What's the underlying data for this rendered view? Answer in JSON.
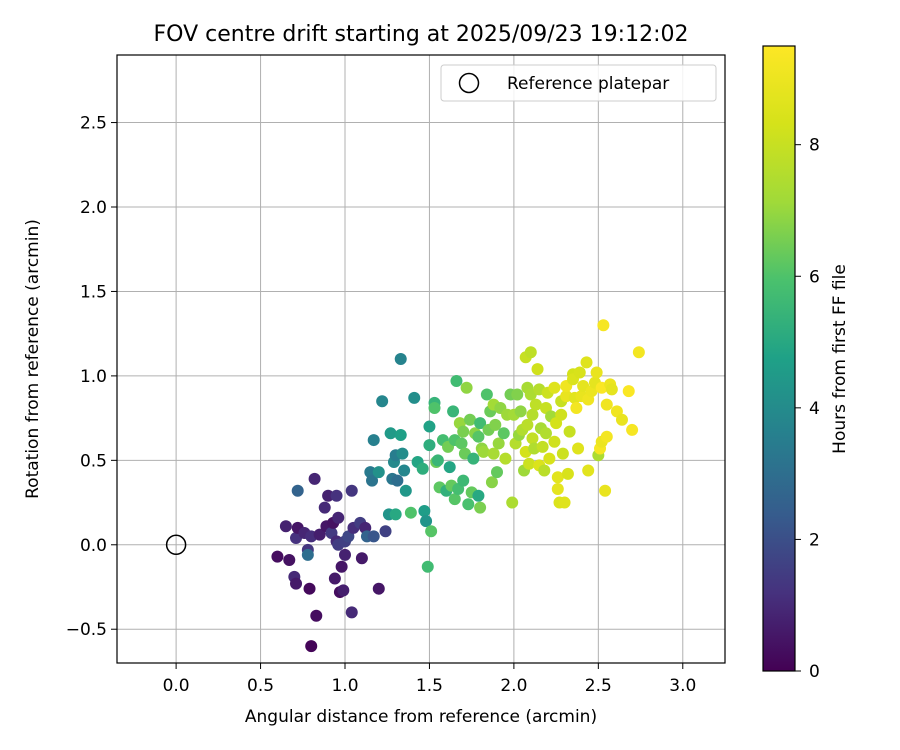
{
  "chart_data": {
    "type": "scatter",
    "title": "FOV centre drift starting at 2025/09/23 19:12:02",
    "xlabel": "Angular distance from reference (arcmin)",
    "ylabel": "Rotation from reference (arcmin)",
    "xlim": [
      -0.35,
      3.25
    ],
    "ylim": [
      -0.7,
      2.9
    ],
    "xticks": [
      0.0,
      0.5,
      1.0,
      1.5,
      2.0,
      2.5,
      3.0
    ],
    "xtick_labels": [
      "0.0",
      "0.5",
      "1.0",
      "1.5",
      "2.0",
      "2.5",
      "3.0"
    ],
    "yticks": [
      -0.5,
      0.0,
      0.5,
      1.0,
      1.5,
      2.0,
      2.5
    ],
    "ytick_labels": [
      "−0.5",
      "0.0",
      "0.5",
      "1.0",
      "1.5",
      "2.0",
      "2.5"
    ],
    "grid": true,
    "legend": {
      "position": "top-right",
      "entries": [
        {
          "label": "Reference platepar",
          "marker": "open-circle"
        }
      ]
    },
    "reference_point": {
      "x": 0.0,
      "y": 0.0
    },
    "colorbar": {
      "label": "Hours from first FF file",
      "colormap": "viridis",
      "range": [
        0,
        9.5
      ],
      "ticks": [
        0,
        2,
        4,
        6,
        8
      ],
      "tick_labels": [
        "0",
        "2",
        "4",
        "6",
        "8"
      ]
    },
    "series": [
      {
        "name": "FOV centre",
        "colored_by": "hours",
        "points": [
          [
            0.6,
            -0.07,
            0.3
          ],
          [
            0.67,
            -0.09,
            0.4
          ],
          [
            0.65,
            0.11,
            0.8
          ],
          [
            0.71,
            0.04,
            1.2
          ],
          [
            0.72,
            0.1,
            0.5
          ],
          [
            0.7,
            -0.19,
            1.0
          ],
          [
            0.71,
            -0.23,
            0.6
          ],
          [
            0.72,
            0.32,
            2.6
          ],
          [
            0.76,
            0.07,
            0.9
          ],
          [
            0.78,
            -0.03,
            1.3
          ],
          [
            0.78,
            -0.06,
            3.0
          ],
          [
            0.79,
            -0.26,
            0.2
          ],
          [
            0.8,
            0.05,
            1.1
          ],
          [
            0.8,
            -0.6,
            0.1
          ],
          [
            0.82,
            0.39,
            0.9
          ],
          [
            0.83,
            -0.42,
            0.3
          ],
          [
            0.85,
            0.06,
            0.7
          ],
          [
            0.88,
            0.22,
            1.0
          ],
          [
            0.89,
            0.11,
            0.5
          ],
          [
            0.9,
            0.29,
            0.8
          ],
          [
            0.92,
            0.07,
            1.4
          ],
          [
            0.93,
            0.13,
            0.4
          ],
          [
            0.94,
            -0.2,
            0.6
          ],
          [
            0.95,
            0.29,
            1.2
          ],
          [
            0.95,
            0.02,
            1.0
          ],
          [
            0.96,
            0.0,
            1.5
          ],
          [
            0.96,
            0.16,
            0.9
          ],
          [
            0.97,
            -0.28,
            0.3
          ],
          [
            0.98,
            -0.13,
            0.5
          ],
          [
            0.99,
            -0.27,
            0.7
          ],
          [
            1.0,
            0.02,
            1.6
          ],
          [
            1.0,
            -0.06,
            0.8
          ],
          [
            1.02,
            0.05,
            1.8
          ],
          [
            1.04,
            0.32,
            1.3
          ],
          [
            1.04,
            -0.4,
            1.0
          ],
          [
            1.05,
            0.1,
            1.1
          ],
          [
            1.09,
            0.13,
            1.5
          ],
          [
            1.1,
            -0.08,
            0.6
          ],
          [
            1.12,
            0.1,
            0.9
          ],
          [
            1.13,
            0.05,
            2.6
          ],
          [
            1.15,
            0.43,
            3.4
          ],
          [
            1.16,
            0.38,
            3.2
          ],
          [
            1.17,
            0.62,
            3.6
          ],
          [
            1.17,
            0.05,
            2.2
          ],
          [
            1.2,
            -0.26,
            0.5
          ],
          [
            1.2,
            0.43,
            4.2
          ],
          [
            1.22,
            0.85,
            3.8
          ],
          [
            1.24,
            0.08,
            1.6
          ],
          [
            1.26,
            0.18,
            4.3
          ],
          [
            1.27,
            0.66,
            4.5
          ],
          [
            1.28,
            0.39,
            3.3
          ],
          [
            1.29,
            0.49,
            3.9
          ],
          [
            1.3,
            0.53,
            3.5
          ],
          [
            1.3,
            0.18,
            5.0
          ],
          [
            1.31,
            0.38,
            3.0
          ],
          [
            1.33,
            0.65,
            4.7
          ],
          [
            1.33,
            1.1,
            3.7
          ],
          [
            1.34,
            0.54,
            4.0
          ],
          [
            1.35,
            0.44,
            3.8
          ],
          [
            1.36,
            0.32,
            4.4
          ],
          [
            1.39,
            0.19,
            6.0
          ],
          [
            1.41,
            0.87,
            4.1
          ],
          [
            1.43,
            0.49,
            4.9
          ],
          [
            1.46,
            0.45,
            5.2
          ],
          [
            1.47,
            0.2,
            4.6
          ],
          [
            1.48,
            0.14,
            4.3
          ],
          [
            1.49,
            -0.13,
            5.7
          ],
          [
            1.5,
            0.59,
            5.2
          ],
          [
            1.5,
            0.7,
            4.8
          ],
          [
            1.51,
            0.08,
            6.1
          ],
          [
            1.53,
            0.84,
            5.4
          ],
          [
            1.53,
            0.81,
            6.0
          ],
          [
            1.54,
            0.49,
            6.4
          ],
          [
            1.55,
            0.5,
            5.5
          ],
          [
            1.56,
            0.34,
            6.2
          ],
          [
            1.58,
            0.62,
            5.8
          ],
          [
            1.6,
            0.32,
            5.3
          ],
          [
            1.61,
            0.58,
            6.5
          ],
          [
            1.62,
            0.46,
            4.9
          ],
          [
            1.63,
            0.35,
            6.3
          ],
          [
            1.64,
            0.79,
            5.5
          ],
          [
            1.65,
            0.27,
            6.1
          ],
          [
            1.65,
            0.62,
            6.0
          ],
          [
            1.66,
            0.97,
            5.7
          ],
          [
            1.67,
            0.33,
            5.8
          ],
          [
            1.68,
            0.72,
            7.0
          ],
          [
            1.69,
            0.6,
            6.2
          ],
          [
            1.7,
            0.38,
            5.6
          ],
          [
            1.7,
            0.67,
            6.6
          ],
          [
            1.71,
            0.54,
            6.4
          ],
          [
            1.72,
            0.93,
            6.9
          ],
          [
            1.73,
            0.24,
            5.9
          ],
          [
            1.74,
            0.74,
            6.5
          ],
          [
            1.75,
            0.31,
            6.3
          ],
          [
            1.76,
            0.51,
            5.4
          ],
          [
            1.77,
            0.66,
            6.8
          ],
          [
            1.79,
            0.29,
            5.0
          ],
          [
            1.79,
            0.64,
            6.1
          ],
          [
            1.8,
            0.72,
            5.7
          ],
          [
            1.8,
            0.22,
            6.6
          ],
          [
            1.81,
            0.57,
            6.9
          ],
          [
            1.82,
            0.55,
            7.1
          ],
          [
            1.84,
            0.89,
            6.0
          ],
          [
            1.85,
            0.68,
            6.5
          ],
          [
            1.86,
            0.79,
            6.4
          ],
          [
            1.87,
            0.37,
            6.8
          ],
          [
            1.88,
            0.54,
            7.3
          ],
          [
            1.88,
            0.83,
            7.2
          ],
          [
            1.89,
            0.71,
            6.7
          ],
          [
            1.9,
            0.43,
            6.3
          ],
          [
            1.91,
            0.6,
            7.0
          ],
          [
            1.92,
            0.81,
            6.9
          ],
          [
            1.94,
            0.66,
            6.2
          ],
          [
            1.95,
            0.51,
            7.6
          ],
          [
            1.96,
            0.77,
            7.1
          ],
          [
            1.98,
            0.89,
            6.5
          ],
          [
            1.99,
            0.25,
            7.4
          ],
          [
            2.0,
            0.77,
            7.2
          ],
          [
            2.01,
            0.6,
            7.6
          ],
          [
            2.02,
            0.89,
            6.7
          ],
          [
            2.03,
            0.65,
            7.0
          ],
          [
            2.04,
            0.79,
            6.9
          ],
          [
            2.05,
            0.68,
            7.5
          ],
          [
            2.06,
            0.44,
            7.1
          ],
          [
            2.07,
            1.11,
            8.0
          ],
          [
            2.07,
            0.55,
            8.3
          ],
          [
            2.08,
            0.93,
            7.3
          ],
          [
            2.08,
            0.71,
            7.7
          ],
          [
            2.09,
            0.48,
            8.1
          ],
          [
            2.1,
            1.14,
            7.8
          ],
          [
            2.1,
            0.89,
            7.4
          ],
          [
            2.11,
            0.63,
            7.9
          ],
          [
            2.11,
            0.77,
            7.6
          ],
          [
            2.12,
            0.57,
            7.5
          ],
          [
            2.13,
            0.83,
            7.8
          ],
          [
            2.14,
            1.04,
            8.2
          ],
          [
            2.15,
            0.92,
            7.6
          ],
          [
            2.15,
            0.47,
            8.5
          ],
          [
            2.16,
            0.69,
            7.3
          ],
          [
            2.17,
            0.58,
            7.9
          ],
          [
            2.18,
            0.44,
            7.7
          ],
          [
            2.19,
            0.81,
            8.0
          ],
          [
            2.19,
            0.66,
            7.5
          ],
          [
            2.2,
            0.9,
            8.1
          ],
          [
            2.21,
            0.51,
            8.4
          ],
          [
            2.22,
            0.76,
            7.2
          ],
          [
            2.24,
            0.61,
            8.2
          ],
          [
            2.24,
            0.93,
            8.6
          ],
          [
            2.25,
            0.72,
            8.3
          ],
          [
            2.26,
            0.4,
            8.7
          ],
          [
            2.26,
            0.33,
            8.8
          ],
          [
            2.27,
            0.25,
            8.5
          ],
          [
            2.28,
            0.85,
            8.0
          ],
          [
            2.28,
            0.77,
            8.2
          ],
          [
            2.29,
            0.54,
            8.1
          ],
          [
            2.3,
            0.25,
            8.6
          ],
          [
            2.31,
            0.88,
            8.9
          ],
          [
            2.31,
            0.94,
            9.1
          ],
          [
            2.32,
            0.42,
            8.4
          ],
          [
            2.33,
            0.67,
            8.0
          ],
          [
            2.35,
            1.01,
            8.3
          ],
          [
            2.35,
            0.98,
            8.5
          ],
          [
            2.36,
            0.87,
            8.7
          ],
          [
            2.37,
            0.81,
            9.2
          ],
          [
            2.38,
            0.57,
            8.6
          ],
          [
            2.39,
            1.02,
            8.4
          ],
          [
            2.4,
            0.88,
            8.9
          ],
          [
            2.41,
            0.94,
            8.8
          ],
          [
            2.43,
            1.08,
            8.6
          ],
          [
            2.44,
            0.44,
            8.7
          ],
          [
            2.44,
            0.86,
            9.1
          ],
          [
            2.46,
            0.91,
            9.0
          ],
          [
            2.48,
            0.96,
            8.8
          ],
          [
            2.49,
            1.02,
            8.9
          ],
          [
            2.5,
            0.53,
            7.4
          ],
          [
            2.51,
            0.57,
            9.3
          ],
          [
            2.52,
            0.61,
            9.0
          ],
          [
            2.52,
            0.93,
            9.4
          ],
          [
            2.53,
            1.3,
            9.3
          ],
          [
            2.54,
            0.32,
            8.9
          ],
          [
            2.55,
            0.64,
            9.2
          ],
          [
            2.55,
            0.83,
            9.1
          ],
          [
            2.57,
            0.95,
            9.0
          ],
          [
            2.58,
            0.92,
            8.8
          ],
          [
            2.61,
            0.79,
            9.1
          ],
          [
            2.64,
            0.74,
            8.9
          ],
          [
            2.68,
            0.91,
            9.4
          ],
          [
            2.7,
            0.68,
            9.3
          ],
          [
            2.74,
            1.14,
            9.2
          ]
        ]
      }
    ]
  }
}
